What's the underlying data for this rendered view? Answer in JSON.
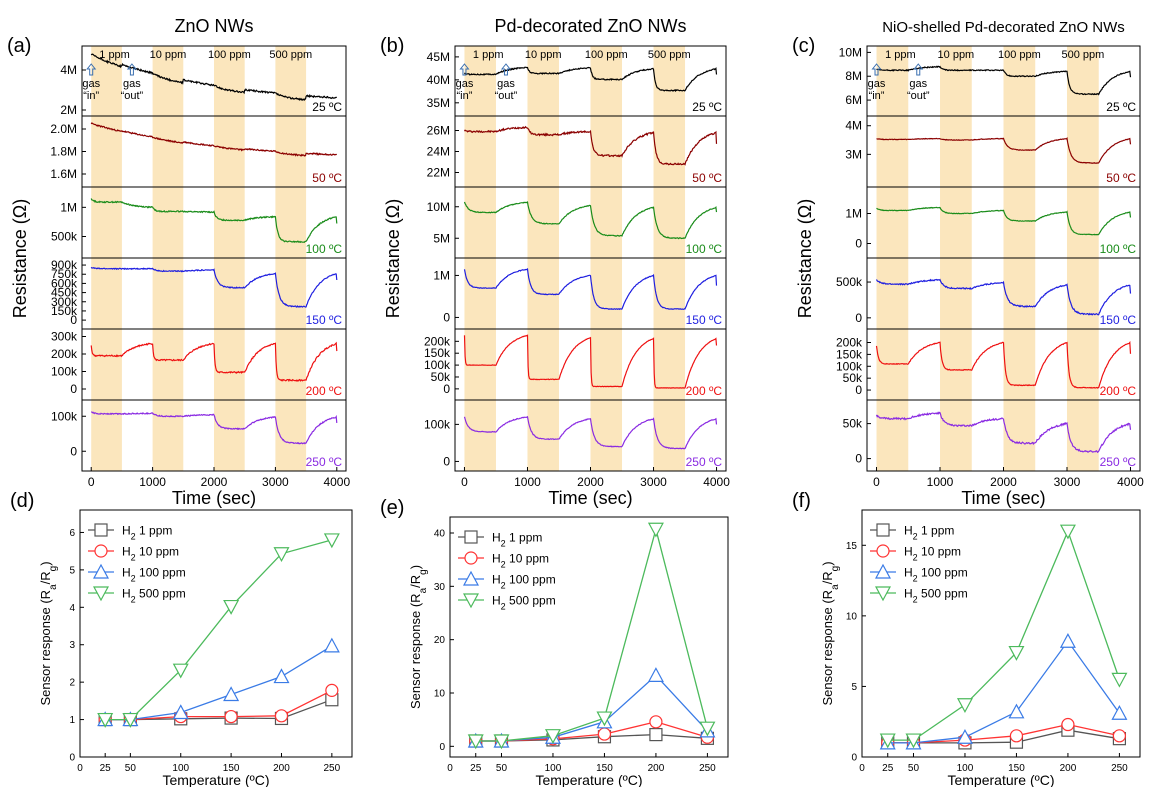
{
  "time_axis": {
    "xlabel": "Time (sec)",
    "xticks": [
      "0",
      "1000",
      "2000",
      "3000",
      "4000"
    ],
    "xlim": [
      -150,
      4150
    ]
  },
  "ylabel_top": "Resistance (Ω)",
  "exposure_windows": [
    {
      "label": "1 ppm",
      "start": 0,
      "end": 500
    },
    {
      "label": "10 ppm",
      "start": 1000,
      "end": 1500
    },
    {
      "label": "100 ppm",
      "start": 2000,
      "end": 2500
    },
    {
      "label": "500 ppm",
      "start": 3000,
      "end": 3500
    }
  ],
  "gas_in_label": [
    "gas",
    "“in”"
  ],
  "gas_out_label": [
    "gas",
    "“out”"
  ],
  "temps": [
    {
      "label": "25 ºC",
      "color": "#000000"
    },
    {
      "label": "50 ºC",
      "color": "#8b0000"
    },
    {
      "label": "100 ºC",
      "color": "#1a8c1a"
    },
    {
      "label": "150 ºC",
      "color": "#1f1fe0"
    },
    {
      "label": "200 ºC",
      "color": "#ee1111"
    },
    {
      "label": "250 ºC",
      "color": "#8a2be2"
    }
  ],
  "colors": {
    "window": "#fbe6bd",
    "window_edge": "#f0c97a"
  },
  "panels_top": [
    {
      "letter": "(a)",
      "title": "ZnO NWs",
      "rows": [
        {
          "ylim": [
            1.9,
            5.0
          ],
          "ticks": [
            {
              "v": 2,
              "t": "2M"
            },
            {
              "v": 4,
              "t": "4M"
            }
          ],
          "trace": {
            "type": "drift",
            "start": 4.8,
            "end": 2.6,
            "dips": [
              0.1,
              0.15,
              0.15,
              0.2
            ],
            "noise": 0.04
          }
        },
        {
          "ylim": [
            1.52,
            2.08
          ],
          "ticks": [
            {
              "v": 1.6,
              "t": "1.6M"
            },
            {
              "v": 1.8,
              "t": "1.8M"
            },
            {
              "v": 2.0,
              "t": "2.0M"
            }
          ],
          "trace": {
            "type": "drift",
            "start": 2.05,
            "end": 1.77,
            "dips": [
              0.005,
              0.01,
              0.01,
              0.02
            ],
            "noise": 0.006
          }
        },
        {
          "ylim": [
            200,
            1280
          ],
          "ticks": [
            {
              "v": 500,
              "t": "500k"
            },
            {
              "v": 1000,
              "t": "1M"
            }
          ],
          "trace": {
            "type": "resp",
            "base": [
              1150,
              1000,
              920,
              840
            ],
            "drop": [
              60,
              70,
              140,
              430
            ],
            "tail": 780,
            "tau": 40,
            "noise": 10
          }
        },
        {
          "ylim": [
            -80,
            950
          ],
          "ticks": [
            {
              "v": 0,
              "t": "0"
            },
            {
              "v": 150,
              "t": "150k"
            },
            {
              "v": 300,
              "t": "300k"
            },
            {
              "v": 450,
              "t": "450k"
            },
            {
              "v": 600,
              "t": "600k"
            },
            {
              "v": 750,
              "t": "750k"
            },
            {
              "v": 900,
              "t": "900k"
            }
          ],
          "trace": {
            "type": "resp",
            "base": [
              860,
              840,
              820,
              760
            ],
            "drop": [
              20,
              40,
              290,
              540
            ],
            "tail": 720,
            "tau": 60,
            "noise": 8
          }
        },
        {
          "ylim": [
            -40,
            320
          ],
          "ticks": [
            {
              "v": 0,
              "t": "0"
            },
            {
              "v": 100,
              "t": "100k"
            },
            {
              "v": 200,
              "t": "200k"
            },
            {
              "v": 300,
              "t": "300k"
            }
          ],
          "trace": {
            "type": "resp",
            "base": [
              250,
              260,
              260,
              260
            ],
            "drop": [
              60,
              95,
              165,
              210
            ],
            "tail": 240,
            "tau": 15,
            "noise": 4
          }
        },
        {
          "ylim": [
            -45,
            135
          ],
          "ticks": [
            {
              "v": 0,
              "t": "0"
            },
            {
              "v": 100,
              "t": "100k"
            }
          ],
          "trace": {
            "type": "resp",
            "base": [
              112,
              108,
              104,
              98
            ],
            "drop": [
              5,
              8,
              40,
              75
            ],
            "tail": 90,
            "tau": 60,
            "noise": 1.5
          }
        }
      ]
    },
    {
      "letter": "(b)",
      "title": "Pd-decorated ZnO NWs",
      "rows": [
        {
          "ylim": [
            33,
            46.5
          ],
          "ticks": [
            {
              "v": 35,
              "t": "35M"
            },
            {
              "v": 40,
              "t": "40M"
            },
            {
              "v": 45,
              "t": "45M"
            }
          ],
          "trace": {
            "type": "resp",
            "base": [
              41.5,
              42.7,
              42.6,
              42.4
            ],
            "drop": [
              0.3,
              1.3,
              2.5,
              4.7
            ],
            "tail": 41.8,
            "tau": 30,
            "noise": 0.12
          }
        },
        {
          "ylim": [
            21,
            27
          ],
          "ticks": [
            {
              "v": 22,
              "t": "22M"
            },
            {
              "v": 24,
              "t": "24M"
            },
            {
              "v": 26,
              "t": "26M"
            }
          ],
          "trace": {
            "type": "resp",
            "base": [
              26.0,
              26.3,
              25.9,
              25.8
            ],
            "drop": [
              0.1,
              0.7,
              2.3,
              3.0
            ],
            "tail": 25.1,
            "tau": 40,
            "noise": 0.08
          }
        },
        {
          "ylim": [
            2.5,
            12.5
          ],
          "ticks": [
            {
              "v": 5,
              "t": "5M"
            },
            {
              "v": 10,
              "t": "10M"
            }
          ],
          "trace": {
            "type": "resp",
            "base": [
              10.8,
              10.7,
              10.2,
              9.9
            ],
            "drop": [
              1.7,
              3.4,
              4.8,
              4.9
            ],
            "tail": 9.8,
            "tau": 60,
            "noise": 0.06
          }
        },
        {
          "ylim": [
            -0.18,
            1.32
          ],
          "ticks": [
            {
              "v": 0,
              "t": "0"
            },
            {
              "v": 1,
              "t": "1M"
            }
          ],
          "trace": {
            "type": "resp",
            "base": [
              1.15,
              1.15,
              1.0,
              1.0
            ],
            "drop": [
              0.45,
              0.6,
              0.8,
              0.8
            ],
            "tail": 0.85,
            "tau": 50,
            "noise": 0.008
          }
        },
        {
          "ylim": [
            -30,
            235
          ],
          "ticks": [
            {
              "v": 0,
              "t": "0"
            },
            {
              "v": 50,
              "t": "50k"
            },
            {
              "v": 100,
              "t": "100k"
            },
            {
              "v": 150,
              "t": "150k"
            },
            {
              "v": 200,
              "t": "200k"
            }
          ],
          "trace": {
            "type": "resp",
            "base": [
              225,
              225,
              215,
              212
            ],
            "drop": [
              125,
              185,
              205,
              208
            ],
            "tail": 210,
            "tau": 8,
            "noise": 1
          }
        },
        {
          "ylim": [
            -15,
            155
          ],
          "ticks": [
            {
              "v": 0,
              "t": "0"
            },
            {
              "v": 100,
              "t": "100k"
            }
          ],
          "trace": {
            "type": "resp",
            "base": [
              120,
              120,
              115,
              115
            ],
            "drop": [
              40,
              60,
              75,
              80
            ],
            "tail": 110,
            "tau": 60,
            "noise": 1
          }
        }
      ]
    },
    {
      "letter": "(c)",
      "title": "NiO-shelled Pd-decorated ZnO NWs",
      "rows": [
        {
          "ylim": [
            5,
            10.2
          ],
          "ticks": [
            {
              "v": 6,
              "t": "6M"
            },
            {
              "v": 8,
              "t": "8M"
            },
            {
              "v": 10,
              "t": "10M"
            }
          ],
          "trace": {
            "type": "resp",
            "base": [
              8.6,
              8.8,
              8.5,
              8.4
            ],
            "drop": [
              0.1,
              0.3,
              0.5,
              1.9
            ],
            "tail": 8.1,
            "tau": 40,
            "noise": 0.04
          }
        },
        {
          "ylim": [
            2.0,
            4.2
          ],
          "ticks": [
            {
              "v": 3,
              "t": "3M"
            },
            {
              "v": 4,
              "t": "4M"
            }
          ],
          "trace": {
            "type": "resp",
            "base": [
              3.55,
              3.55,
              3.55,
              3.55
            ],
            "drop": [
              0.03,
              0.05,
              0.4,
              0.85
            ],
            "tail": 3.45,
            "tau": 60,
            "noise": 0.01
          }
        },
        {
          "ylim": [
            -0.35,
            1.75
          ],
          "ticks": [
            {
              "v": 0,
              "t": "0"
            },
            {
              "v": 1,
              "t": "1M"
            }
          ],
          "trace": {
            "type": "resp",
            "base": [
              1.18,
              1.2,
              1.1,
              1.05
            ],
            "drop": [
              0.08,
              0.2,
              0.35,
              0.75
            ],
            "tail": 0.95,
            "tau": 50,
            "noise": 0.01
          }
        },
        {
          "ylim": [
            -100,
            780
          ],
          "ticks": [
            {
              "v": 0,
              "t": "0"
            },
            {
              "v": 500,
              "t": "500k"
            }
          ],
          "trace": {
            "type": "resp",
            "base": [
              530,
              530,
              490,
              460
            ],
            "drop": [
              60,
              120,
              330,
              410
            ],
            "tail": 380,
            "tau": 60,
            "noise": 8
          }
        },
        {
          "ylim": [
            -25,
            240
          ],
          "ticks": [
            {
              "v": 0,
              "t": "0"
            },
            {
              "v": 50,
              "t": "50k"
            },
            {
              "v": 100,
              "t": "100k"
            },
            {
              "v": 150,
              "t": "150k"
            },
            {
              "v": 200,
              "t": "200k"
            }
          ],
          "trace": {
            "type": "resp",
            "base": [
              185,
              200,
              200,
              200
            ],
            "drop": [
              75,
              115,
              180,
              190
            ],
            "tail": 175,
            "tau": 30,
            "noise": 1.5
          }
        },
        {
          "ylim": [
            -12,
            78
          ],
          "ticks": [
            {
              "v": 0,
              "t": "0"
            },
            {
              "v": 50,
              "t": "50k"
            }
          ],
          "trace": {
            "type": "resp",
            "base": [
              62,
              65,
              57,
              50
            ],
            "drop": [
              5,
              18,
              35,
              40
            ],
            "tail": 47,
            "tau": 60,
            "noise": 1.2
          }
        }
      ]
    }
  ],
  "chart_data": [
    {
      "type": "line",
      "letter": "(d)",
      "xlabel": "Temperature (ºC)",
      "ylabel": "Sensor response (Ra/Rg)",
      "x": [
        25,
        50,
        100,
        150,
        200,
        250
      ],
      "xlim": [
        0,
        270
      ],
      "ylim": [
        0,
        6.6
      ],
      "yticks": [
        0,
        1,
        2,
        3,
        4,
        5,
        6
      ],
      "series": [
        {
          "name": "H2 1 ppm",
          "marker": "square",
          "color": "#555555",
          "values": [
            1.0,
            1.0,
            1.02,
            1.04,
            1.03,
            1.53
          ]
        },
        {
          "name": "H2 10 ppm",
          "marker": "circle",
          "color": "#ff3333",
          "values": [
            1.0,
            1.0,
            1.08,
            1.08,
            1.1,
            1.78
          ]
        },
        {
          "name": "H2 100 ppm",
          "marker": "triangle-up",
          "color": "#3a7be6",
          "values": [
            1.0,
            1.0,
            1.19,
            1.67,
            2.15,
            2.97
          ]
        },
        {
          "name": "H2 500 ppm",
          "marker": "triangle-down",
          "color": "#4cba5c",
          "values": [
            1.0,
            1.0,
            2.32,
            4.02,
            5.43,
            5.8
          ]
        }
      ]
    },
    {
      "type": "line",
      "letter": "(e)",
      "xlabel": "Temperature (ºC)",
      "ylabel": "Sensor response (Ra/Rg)",
      "x": [
        25,
        50,
        100,
        150,
        200,
        250
      ],
      "xlim": [
        0,
        270
      ],
      "ylim": [
        -2,
        43
      ],
      "yticks": [
        0,
        10,
        20,
        30,
        40
      ],
      "series": [
        {
          "name": "H2 1 ppm",
          "marker": "square",
          "color": "#555555",
          "values": [
            1.0,
            1.0,
            1.2,
            1.8,
            2.2,
            1.5
          ]
        },
        {
          "name": "H2 10 ppm",
          "marker": "circle",
          "color": "#ff3333",
          "values": [
            1.0,
            1.0,
            1.4,
            2.3,
            4.6,
            1.7
          ]
        },
        {
          "name": "H2 100 ppm",
          "marker": "triangle-up",
          "color": "#3a7be6",
          "values": [
            1.0,
            1.0,
            1.7,
            4.6,
            13.3,
            2.9
          ]
        },
        {
          "name": "H2 500 ppm",
          "marker": "triangle-down",
          "color": "#4cba5c",
          "values": [
            1.0,
            1.0,
            2.0,
            5.3,
            40.7,
            3.4
          ]
        }
      ]
    },
    {
      "type": "line",
      "letter": "(f)",
      "xlabel": "Temperature (ºC)",
      "ylabel": "Sensor response (Ra/Rg)",
      "x": [
        25,
        50,
        100,
        150,
        200,
        250
      ],
      "xlim": [
        0,
        270
      ],
      "ylim": [
        0,
        17.5
      ],
      "yticks": [
        0,
        5,
        10,
        15
      ],
      "series": [
        {
          "name": "H2 1 ppm",
          "marker": "square",
          "color": "#555555",
          "values": [
            1.0,
            1.0,
            1.0,
            1.05,
            1.9,
            1.3
          ]
        },
        {
          "name": "H2 10 ppm",
          "marker": "circle",
          "color": "#ff3333",
          "values": [
            1.0,
            1.0,
            1.2,
            1.5,
            2.3,
            1.5
          ]
        },
        {
          "name": "H2 100 ppm",
          "marker": "triangle-up",
          "color": "#3a7be6",
          "values": [
            1.0,
            1.0,
            1.4,
            3.2,
            8.2,
            3.1
          ]
        },
        {
          "name": "H2 500 ppm",
          "marker": "triangle-down",
          "color": "#4cba5c",
          "values": [
            1.2,
            1.2,
            3.7,
            7.4,
            16.0,
            5.5
          ]
        }
      ]
    }
  ]
}
